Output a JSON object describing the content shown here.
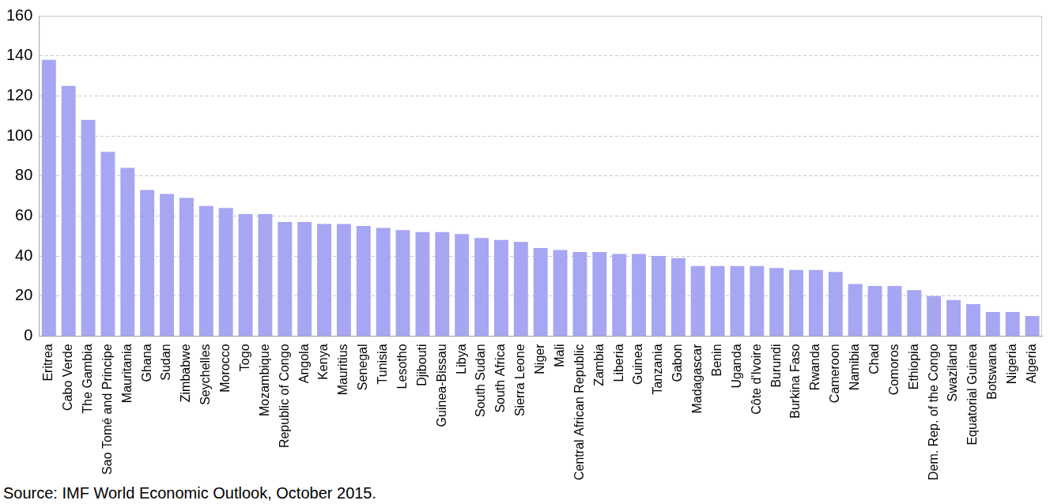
{
  "chart_data": {
    "type": "bar",
    "source": "Source: IMF World Economic Outlook, October 2015.",
    "categories": [
      "Eritrea",
      "Cabo Verde",
      "The Gambia",
      "Sao Tomé and Principe",
      "Mauritania",
      "Ghana",
      "Sudan",
      "Zimbabwe",
      "Seychelles",
      "Morocco",
      "Togo",
      "Mozambique",
      "Republic of Congo",
      "Angola",
      "Kenya",
      "Mauritius",
      "Senegal",
      "Tunisia",
      "Lesotho",
      "Djibouti",
      "Guinea-Bissau",
      "Libya",
      "South Sudan",
      "South Africa",
      "Sierra Leone",
      "Niger",
      "Mali",
      "Central African Republic",
      "Zambia",
      "Liberia",
      "Guinea",
      "Tanzania",
      "Gabon",
      "Madagascar",
      "Benin",
      "Uganda",
      "Côte d'Ivoire",
      "Burundi",
      "Burkina Faso",
      "Rwanda",
      "Cameroon",
      "Namibia",
      "Chad",
      "Comoros",
      "Ethiopia",
      "Dem. Rep. of the Congo",
      "Swaziland",
      "Equatorial Guinea",
      "Botswana",
      "Nigeria",
      "Algeria"
    ],
    "values": [
      138,
      125,
      108,
      92,
      84,
      73,
      71,
      69,
      65,
      64,
      61,
      61,
      57,
      57,
      56,
      56,
      55,
      54,
      53,
      52,
      52,
      51,
      49,
      48,
      47,
      44,
      43,
      42,
      42,
      41,
      41,
      40,
      39,
      35,
      35,
      35,
      35,
      34,
      33,
      33,
      32,
      26,
      25,
      25,
      23,
      20,
      18,
      16,
      12,
      12,
      10
    ],
    "color": "#a6a6f2",
    "ylim": [
      0,
      160
    ],
    "yticks": [
      0,
      20,
      40,
      60,
      80,
      100,
      120,
      140,
      160
    ],
    "grid": true
  }
}
